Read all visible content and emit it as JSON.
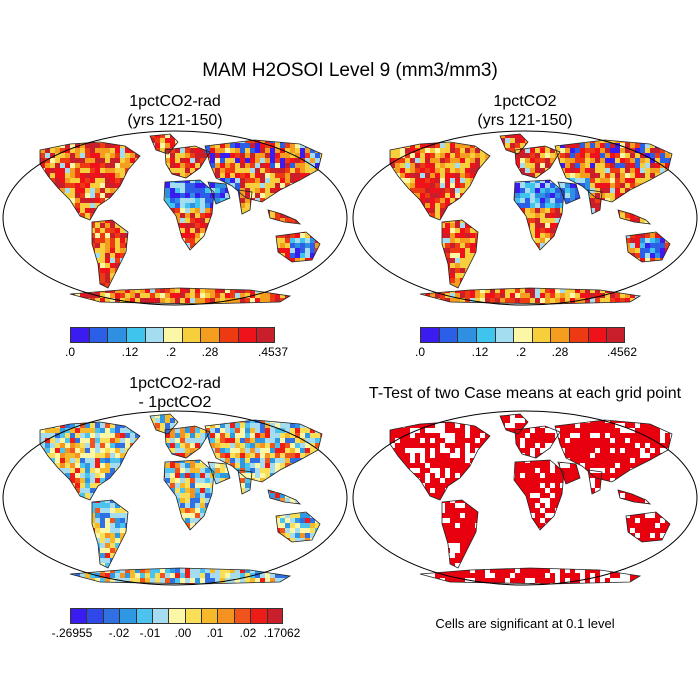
{
  "figure_title": "MAM H2OSOI Level 9 (mm3/mm3)",
  "panels": {
    "top_left": {
      "title_line1": "1pctCO2-rad",
      "title_line2": "(yrs 121-150)"
    },
    "top_right": {
      "title_line1": "1pctCO2",
      "title_line2": "(yrs 121-150)"
    },
    "bottom_left": {
      "title_line1": "1pctCO2-rad",
      "title_line2": "- 1pctCO2"
    },
    "bottom_right": {
      "title_line1": "T-Test of two Case means at each grid point"
    }
  },
  "colorbars": {
    "abs_colors": [
      "#3a1cf0",
      "#2b5fe8",
      "#2f8fe0",
      "#3fc4ee",
      "#a4dcf0",
      "#fbf7a6",
      "#f7cf3d",
      "#f49d1e",
      "#ee3a12",
      "#f0121a",
      "#c81f2a"
    ],
    "diff_colors": [
      "#3a1cf0",
      "#2f48ea",
      "#3070e2",
      "#2f98e2",
      "#4cc3ee",
      "#a5dcf0",
      "#fbf7a6",
      "#f8df57",
      "#f6b92a",
      "#f59322",
      "#f0531c",
      "#ee1c16",
      "#c81f2a"
    ],
    "top_left_labels": [
      ".0",
      ".12",
      ".2",
      ".28",
      ".4537"
    ],
    "top_right_labels": [
      ".0",
      ".12",
      ".2",
      ".28",
      ".4562"
    ],
    "bottom_left_labels": [
      "-.26955",
      "-.02",
      "-.01",
      ".00",
      ".01",
      ".02",
      ".17062"
    ]
  },
  "significance_note": "Cells are significant at 0.1 level",
  "map_colors": {
    "ocean": "#ffffff",
    "outline": "#222222",
    "significant": "#e8000e"
  }
}
